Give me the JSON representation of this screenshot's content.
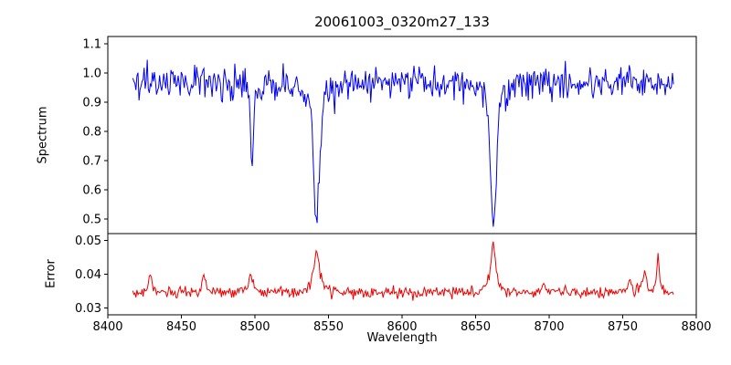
{
  "chart_data": {
    "type": "line",
    "title": "20061003_0320m27_133",
    "xlabel": "Wavelength",
    "grid": false,
    "legend": "none",
    "xlim": [
      8400,
      8800
    ],
    "x_range": [
      8417,
      8785
    ],
    "x_step": 0.7,
    "xticks": [
      8400,
      8450,
      8500,
      8550,
      8600,
      8650,
      8700,
      8750,
      8800
    ],
    "xtick_labels": [
      "8400",
      "8450",
      "8500",
      "8550",
      "8600",
      "8650",
      "8700",
      "8750",
      "8800"
    ],
    "panels": [
      {
        "name": "spectrum",
        "ylabel": "Spectrum",
        "color": "#0000ee",
        "ylim": [
          0.45,
          1.125
        ],
        "yticks": [
          1.1,
          1.0,
          0.9,
          0.8,
          0.7,
          0.6,
          0.5
        ],
        "ytick_labels": [
          "1.1",
          "1.0",
          "0.9",
          "0.8",
          "0.7",
          "0.6",
          "0.5"
        ],
        "continuum": 0.97,
        "noise_sigma": 0.028,
        "absorption_lines": [
          {
            "center": 8498.0,
            "depth": 0.3,
            "width": 0.9
          },
          {
            "center": 8542.1,
            "depth": 0.47,
            "width": 1.9
          },
          {
            "center": 8662.1,
            "depth": 0.52,
            "width": 1.7
          }
        ]
      },
      {
        "name": "error",
        "ylabel": "Error",
        "color": "#ee0000",
        "ylim": [
          0.028,
          0.052
        ],
        "yticks": [
          0.05,
          0.04,
          0.03
        ],
        "ytick_labels": [
          "0.05",
          "0.04",
          "0.03"
        ],
        "baseline": 0.0345,
        "noise_sigma": 0.0008,
        "peaks": [
          {
            "center": 8429,
            "height": 0.0055,
            "width": 1.2
          },
          {
            "center": 8465,
            "height": 0.0065,
            "width": 1.0
          },
          {
            "center": 8497,
            "height": 0.0062,
            "width": 1.3
          },
          {
            "center": 8542,
            "height": 0.0125,
            "width": 2.4
          },
          {
            "center": 8662,
            "height": 0.0155,
            "width": 1.9
          },
          {
            "center": 8696,
            "height": 0.003,
            "width": 1.2
          },
          {
            "center": 8755,
            "height": 0.0035,
            "width": 1.0
          },
          {
            "center": 8765,
            "height": 0.008,
            "width": 1.2
          },
          {
            "center": 8774,
            "height": 0.011,
            "width": 1.0
          }
        ]
      }
    ]
  }
}
